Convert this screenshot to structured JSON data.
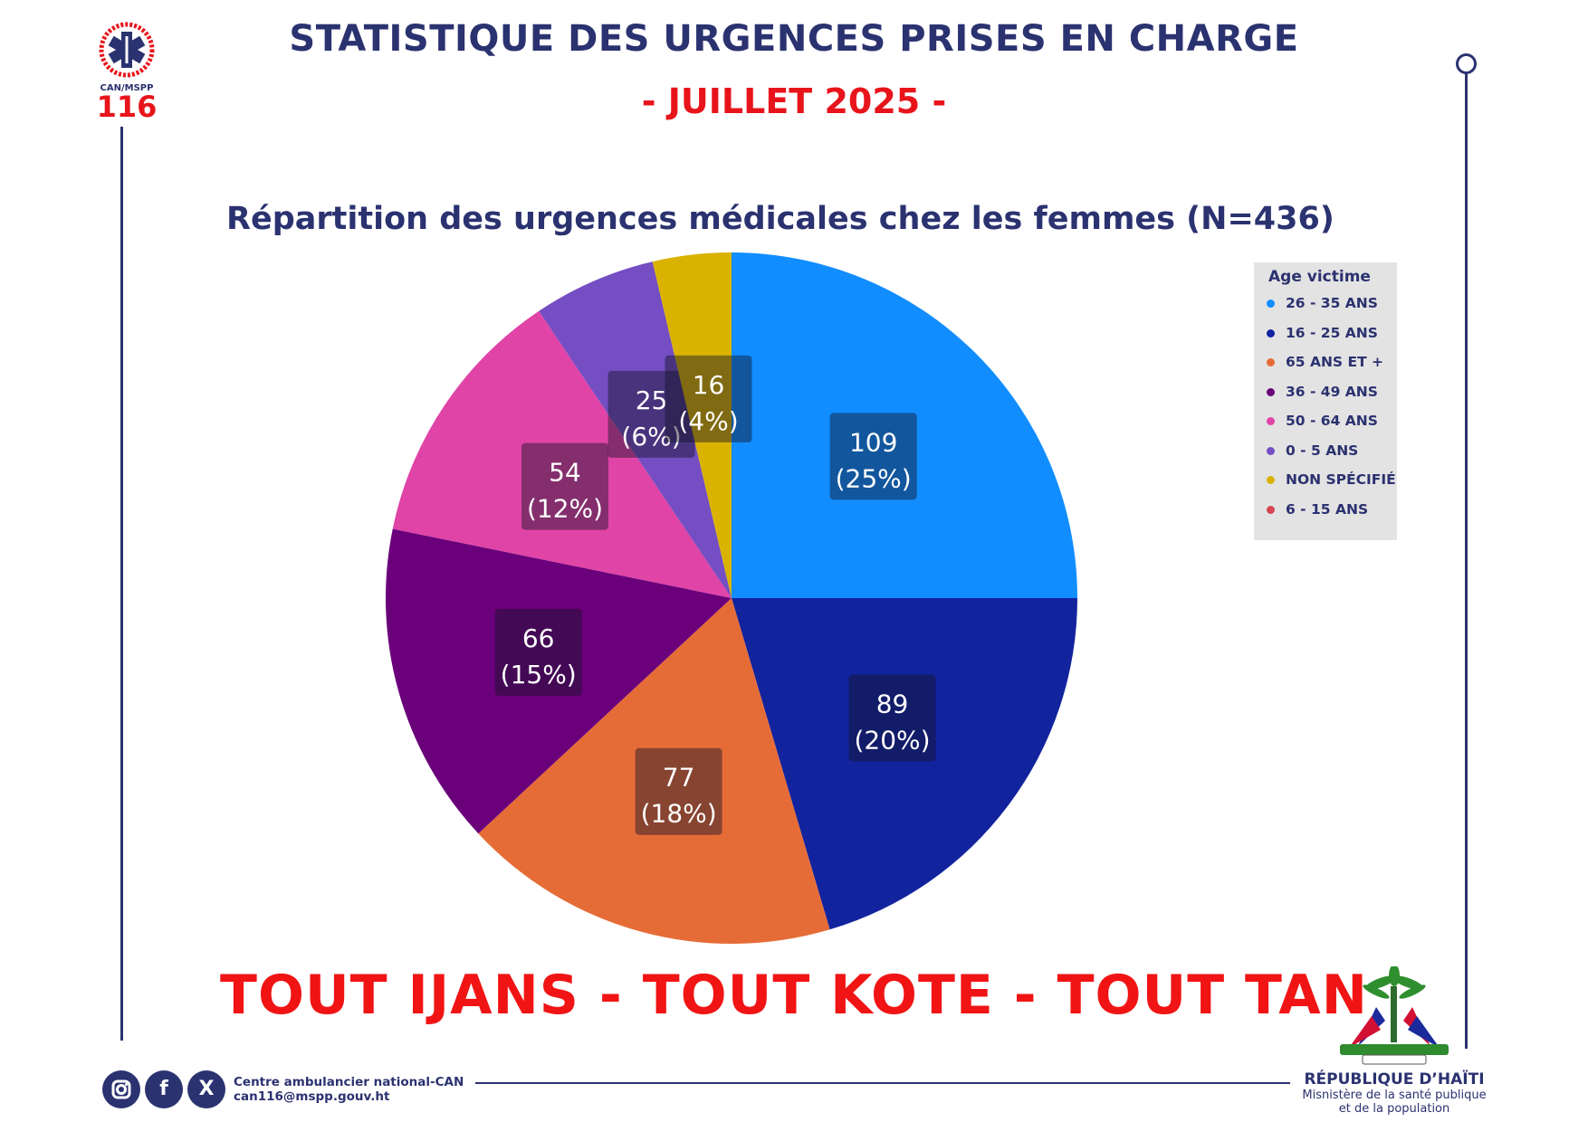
{
  "header": {
    "title": "STATISTIQUE DES URGENCES PRISES EN CHARGE",
    "subtitle": "- JUILLET 2025 -"
  },
  "logo": {
    "ring_text": "CENTRE AMBULANCIER NATIONAL",
    "code": "CAN/MSPP",
    "number": "116"
  },
  "chart_data": {
    "type": "pie",
    "title": "Répartition des urgences médicales chez les femmes (N=436)",
    "legend_title": "Age victime",
    "legend_position": "right",
    "categories": [
      "26 - 35 ANS",
      "16 - 25 ANS",
      "65 ANS ET +",
      "36 - 49 ANS",
      "50 - 64 ANS",
      "0 - 5 ANS",
      "NON SPÉCIFIÉ",
      "6 - 15 ANS"
    ],
    "values": [
      109,
      89,
      77,
      66,
      54,
      25,
      16,
      0
    ],
    "percent_labels": [
      "(25%)",
      "(20%)",
      "(18%)",
      "(15%)",
      "(12%)",
      "(6%)",
      "(4%)",
      ""
    ],
    "slice_colors": [
      "#118dff",
      "#12239e",
      "#e66c37",
      "#6b007b",
      "#e044a7",
      "#744ec2",
      "#d9b300",
      "#d64550"
    ],
    "legend_dot_colors": [
      "#118dff",
      "#12239e",
      "#e66c37",
      "#6b007b",
      "#e044a7",
      "#744ec2",
      "#d9b300",
      "#d64550"
    ]
  },
  "slogan": "TOUT IJANS - TOUT KOTE - TOUT TAN",
  "footer": {
    "social_icons": [
      "instagram-icon",
      "facebook-icon",
      "x-icon"
    ],
    "org_name": "Centre ambulancier national-CAN",
    "email": "can116@mspp.gouv.ht",
    "republic": "RÉPUBLIQUE D’HAÏTI",
    "ministry_line1": "Misnistère de la santé publique",
    "ministry_line2": "et de la population"
  }
}
